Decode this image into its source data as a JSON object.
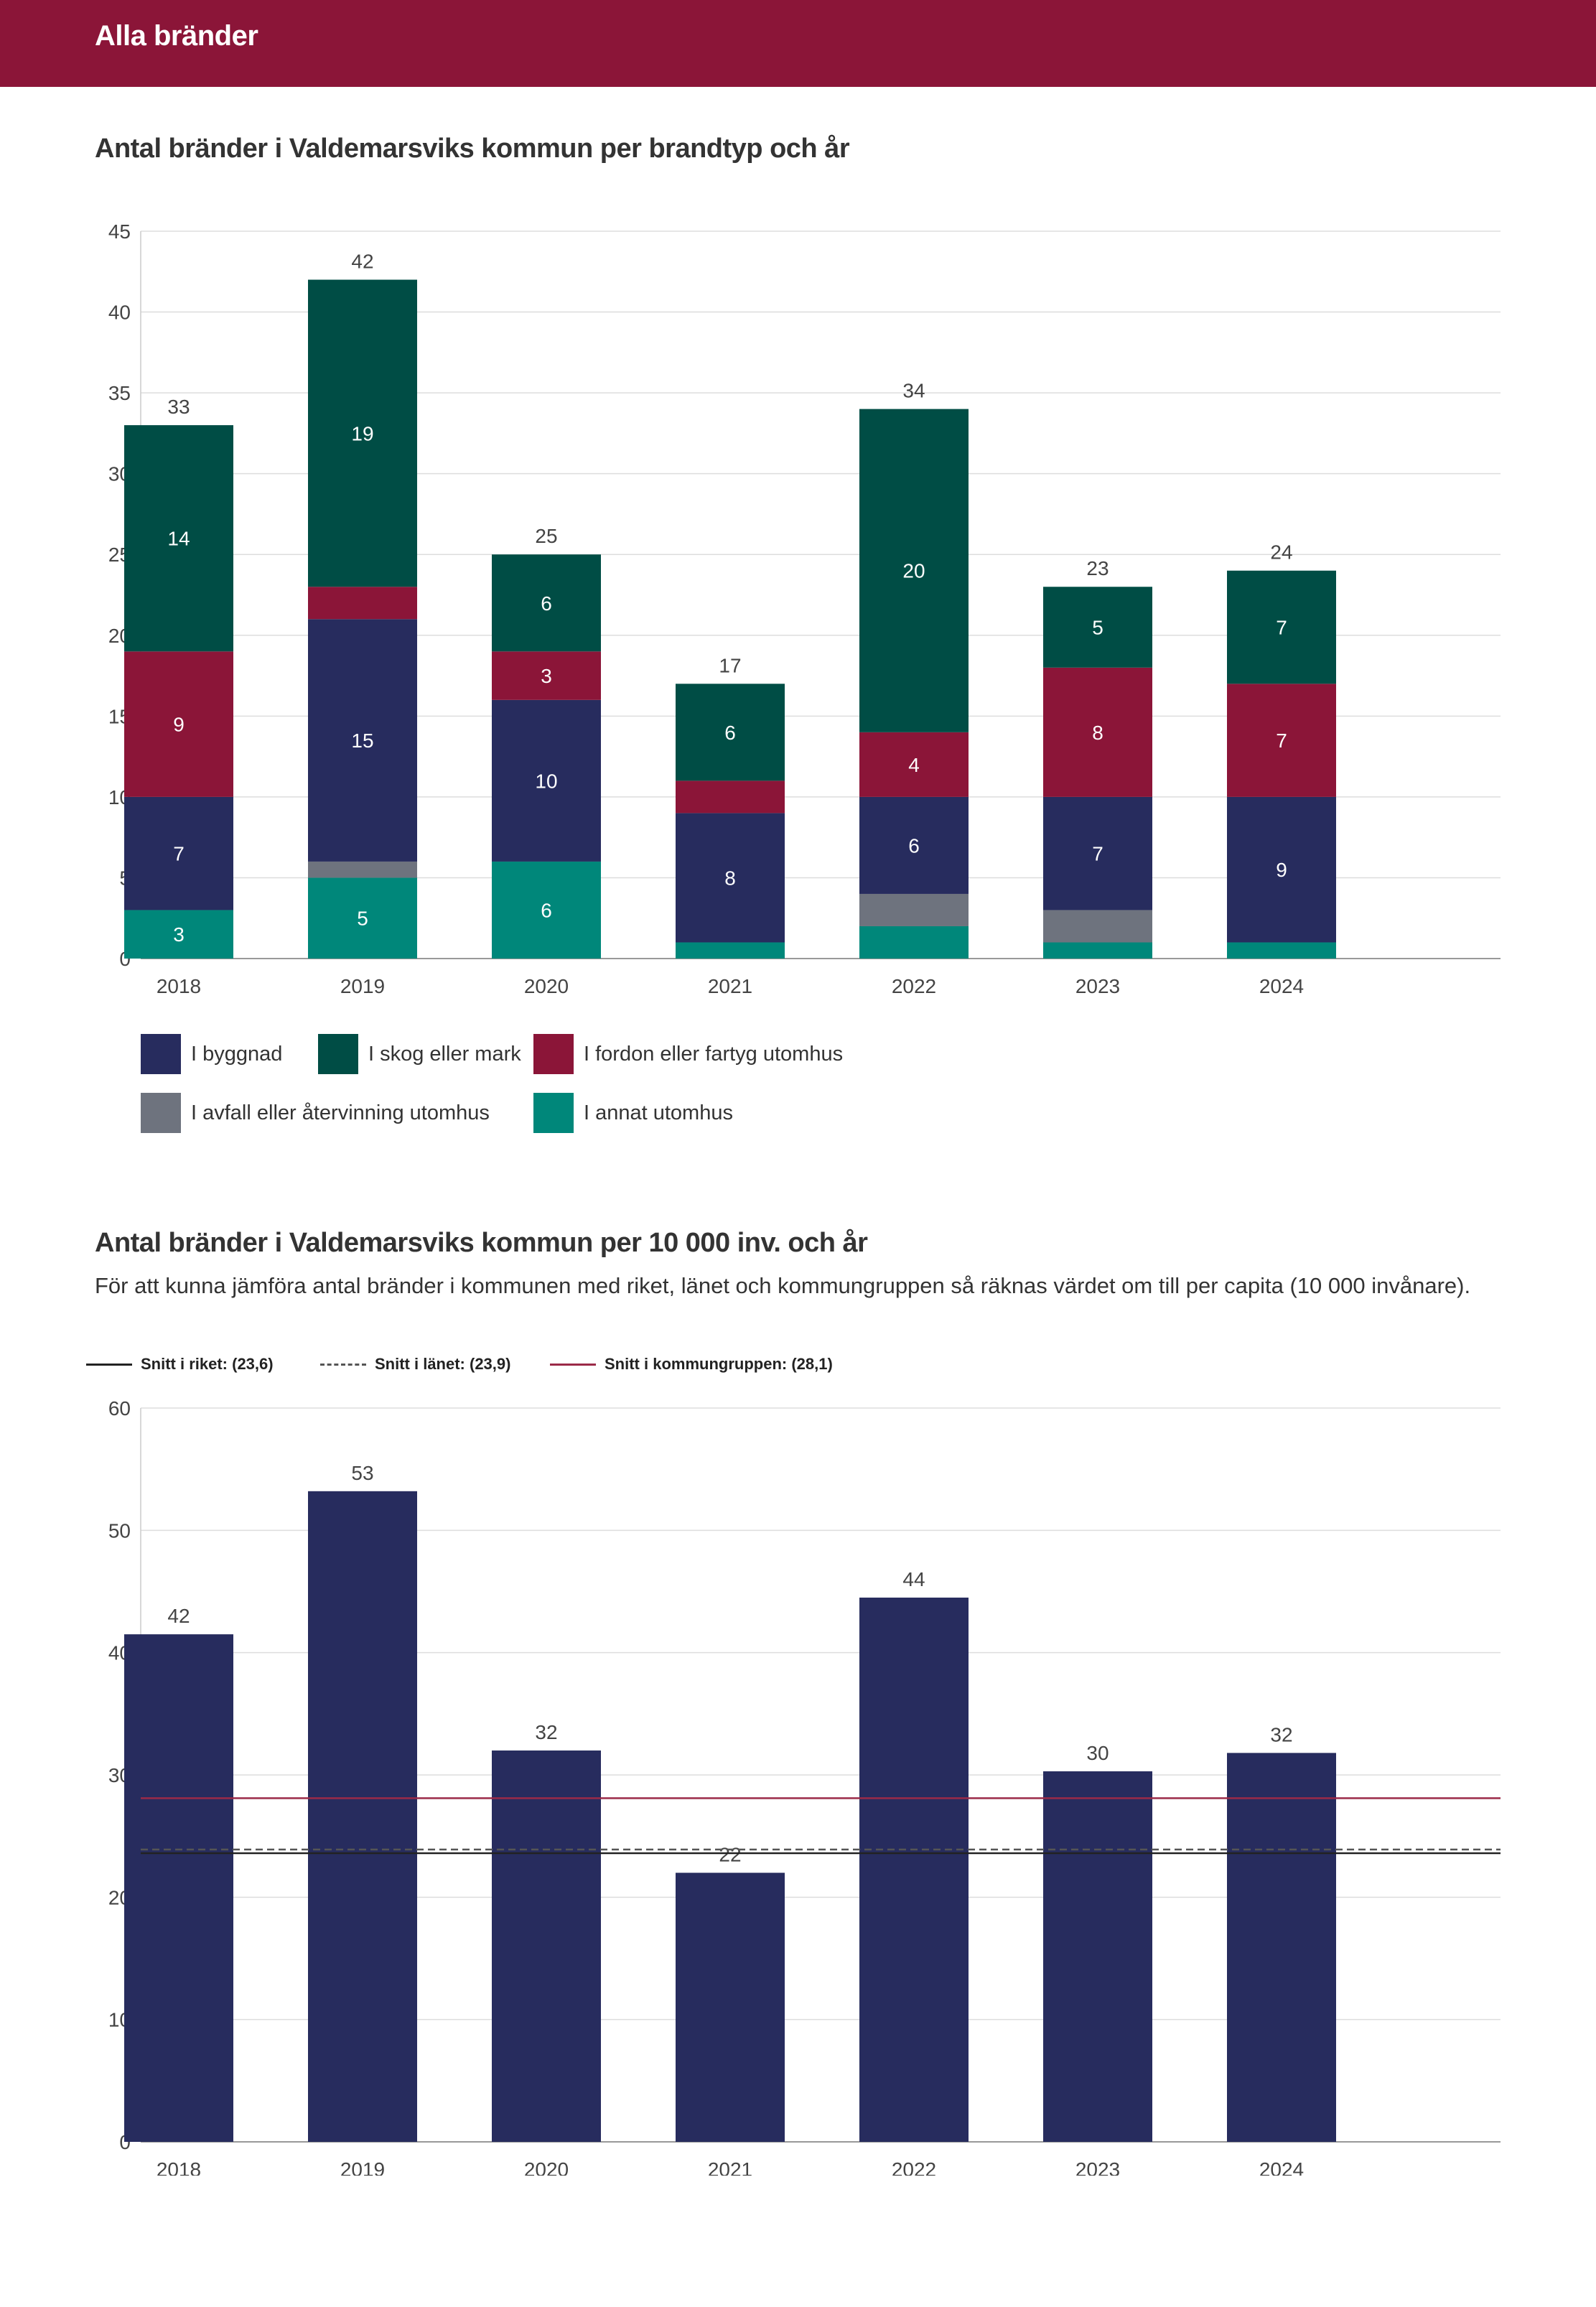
{
  "header": {
    "title": "Alla bränder"
  },
  "chart1": {
    "heading": "Antal bränder i Valdemarsviks kommun per brandtyp och år"
  },
  "chart2": {
    "heading": "Antal bränder i Valdemarsviks kommun per 10 000 inv. och år",
    "subtitle": "För att kunna jämföra antal bränder i kommunen med riket, länet och kommungruppen så räknas värdet om till per capita (10 000 invånare)."
  },
  "colors": {
    "brand": "#8b1538",
    "byggnad": "#272c5e",
    "skog": "#004d45",
    "fordon": "#8b1538",
    "avfall": "#6e737e",
    "annat": "#00877a",
    "riket": "#222222",
    "lanet": "#555555",
    "kommungrupp": "#9b2a48"
  },
  "legend": [
    {
      "label": "I byggnad",
      "color": "#272c5e"
    },
    {
      "label": "I skog eller mark",
      "color": "#004d45"
    },
    {
      "label": "I fordon eller fartyg utomhus",
      "color": "#8b1538"
    },
    {
      "label": "I avfall eller återvinning utomhus",
      "color": "#6e737e"
    },
    {
      "label": "I annat utomhus",
      "color": "#00877a"
    }
  ],
  "ref_legend": [
    {
      "label": "Snitt i riket: (23,6)",
      "style": "solid",
      "color": "#222222"
    },
    {
      "label": "Snitt i länet: (23,9)",
      "style": "dashed",
      "color": "#555555"
    },
    {
      "label": "Snitt i kommungruppen: (28,1)",
      "style": "solid",
      "color": "#9b2a48"
    }
  ],
  "chart_data": [
    {
      "type": "bar",
      "stacked": true,
      "title": "Antal bränder i Valdemarsviks kommun per brandtyp och år",
      "categories": [
        "2018",
        "2019",
        "2020",
        "2021",
        "2022",
        "2023",
        "2024"
      ],
      "ylim": [
        0,
        45
      ],
      "yticks": [
        0,
        5,
        10,
        15,
        20,
        25,
        30,
        35,
        40,
        45
      ],
      "grid": true,
      "legend_position": "bottom",
      "series": [
        {
          "name": "I annat utomhus",
          "color": "#00877a",
          "values": [
            3,
            5,
            6,
            1,
            2,
            1,
            1
          ],
          "labels": [
            "3",
            "5",
            "6",
            "",
            "",
            "",
            ""
          ]
        },
        {
          "name": "I avfall eller återvinning utomhus",
          "color": "#6e737e",
          "values": [
            0,
            1,
            0,
            0,
            2,
            2,
            0
          ],
          "labels": [
            "",
            "",
            "",
            "",
            "",
            "",
            ""
          ]
        },
        {
          "name": "I byggnad",
          "color": "#272c5e",
          "values": [
            7,
            15,
            10,
            8,
            6,
            7,
            9
          ],
          "labels": [
            "7",
            "15",
            "10",
            "8",
            "6",
            "7",
            "9"
          ]
        },
        {
          "name": "I fordon eller fartyg utomhus",
          "color": "#8b1538",
          "values": [
            9,
            2,
            3,
            2,
            4,
            8,
            7
          ],
          "labels": [
            "9",
            "",
            "3",
            "",
            "4",
            "8",
            "7"
          ]
        },
        {
          "name": "I skog eller mark",
          "color": "#004d45",
          "values": [
            14,
            19,
            6,
            6,
            20,
            5,
            7
          ],
          "labels": [
            "14",
            "19",
            "6",
            "6",
            "20",
            "5",
            "7"
          ]
        }
      ],
      "totals": [
        "33",
        "42",
        "25",
        "17",
        "34",
        "23",
        "24"
      ]
    },
    {
      "type": "bar",
      "title": "Antal bränder i Valdemarsviks kommun per 10 000 inv. och år",
      "categories": [
        "2018",
        "2019",
        "2020",
        "2021",
        "2022",
        "2023",
        "2024"
      ],
      "values": [
        41.5,
        53.2,
        32,
        22,
        44.5,
        30.3,
        31.8
      ],
      "value_labels": [
        "42",
        "53",
        "32",
        "22",
        "44",
        "30",
        "32"
      ],
      "color": "#272c5e",
      "ylim": [
        0,
        60
      ],
      "yticks": [
        0,
        10,
        20,
        30,
        40,
        50,
        60
      ],
      "grid": true,
      "reference_lines": [
        {
          "name": "Snitt i riket",
          "value": 23.6,
          "style": "solid",
          "color": "#222222"
        },
        {
          "name": "Snitt i länet",
          "value": 23.9,
          "style": "dashed",
          "color": "#555555"
        },
        {
          "name": "Snitt i kommungruppen",
          "value": 28.1,
          "style": "solid",
          "color": "#9b2a48"
        }
      ]
    }
  ]
}
